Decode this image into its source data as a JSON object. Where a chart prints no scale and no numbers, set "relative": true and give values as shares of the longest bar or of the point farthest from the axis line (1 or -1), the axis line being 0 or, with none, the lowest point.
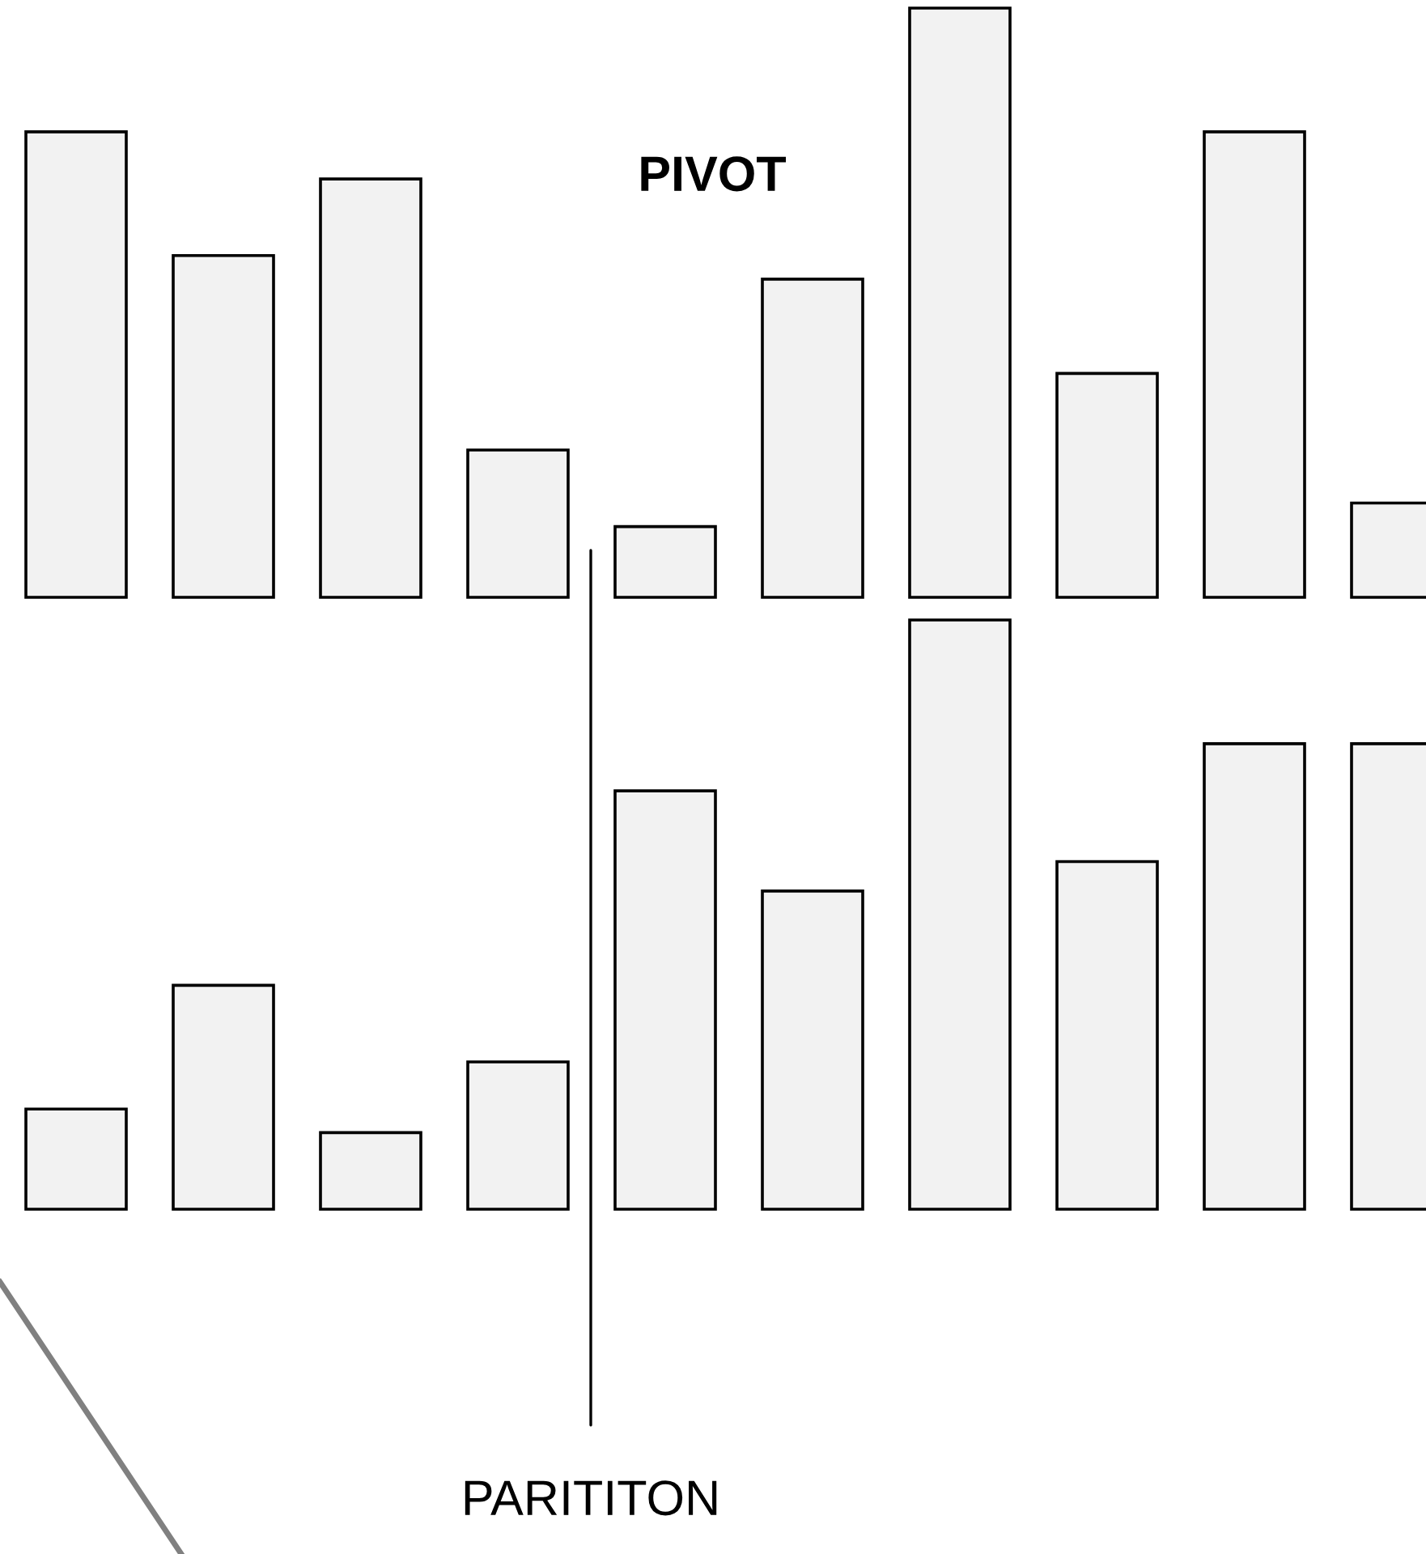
{
  "chart_data": [
    {
      "type": "bar",
      "title": "PIVOT",
      "relative": true,
      "categories": [
        null,
        null,
        null,
        null,
        null,
        null,
        null,
        null,
        null,
        null
      ],
      "color": "#f2f2f2",
      "values": [
        0.79,
        0.58,
        0.71,
        0.25,
        0.12,
        0.54,
        1,
        0.38,
        0.79,
        0.16
      ]
    },
    {
      "type": "bar",
      "relative": true,
      "categories": [
        null,
        null,
        null,
        null,
        null,
        null,
        null,
        null,
        null,
        null
      ],
      "color": "#f2f2f2",
      "values": [
        0.17,
        0.38,
        0.13,
        0.25,
        0.71,
        0.54,
        1,
        0.59,
        0.79,
        0.79
      ],
      "annotations": [
        "PARITITON"
      ]
    }
  ]
}
